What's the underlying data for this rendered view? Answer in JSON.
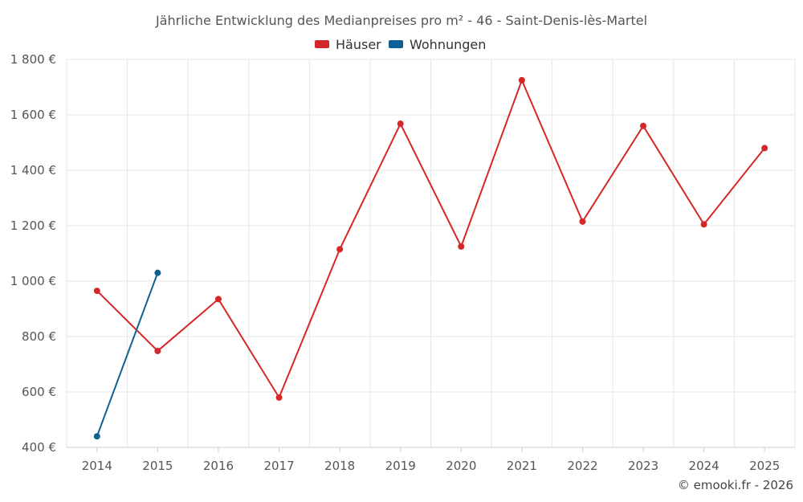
{
  "chart_data": {
    "type": "line",
    "title": "Jährliche Entwicklung des Medianpreises pro m² - 46 - Saint-Denis-lès-Martel",
    "categories": [
      "2014",
      "2015",
      "2016",
      "2017",
      "2018",
      "2019",
      "2020",
      "2021",
      "2022",
      "2023",
      "2024",
      "2025"
    ],
    "ylim": [
      400,
      1800
    ],
    "yticks": [
      400,
      600,
      800,
      1000,
      1200,
      1400,
      1600,
      1800
    ],
    "ytick_labels": [
      "400 €",
      "600 €",
      "800 €",
      "1 000 €",
      "1 200 €",
      "1 400 €",
      "1 600 €",
      "1 800 €"
    ],
    "grid": true,
    "legend_position": "top-center",
    "series": [
      {
        "name": "Häuser",
        "color": "#d62728",
        "values": [
          965,
          748,
          935,
          580,
          1115,
          1568,
          1125,
          1725,
          1215,
          1560,
          1205,
          1480
        ]
      },
      {
        "name": "Wohnungen",
        "color": "#0e6193",
        "values": [
          440,
          1030,
          null,
          null,
          null,
          null,
          null,
          null,
          null,
          null,
          null,
          null
        ]
      }
    ]
  },
  "credit": "© emooki.fr - 2026"
}
